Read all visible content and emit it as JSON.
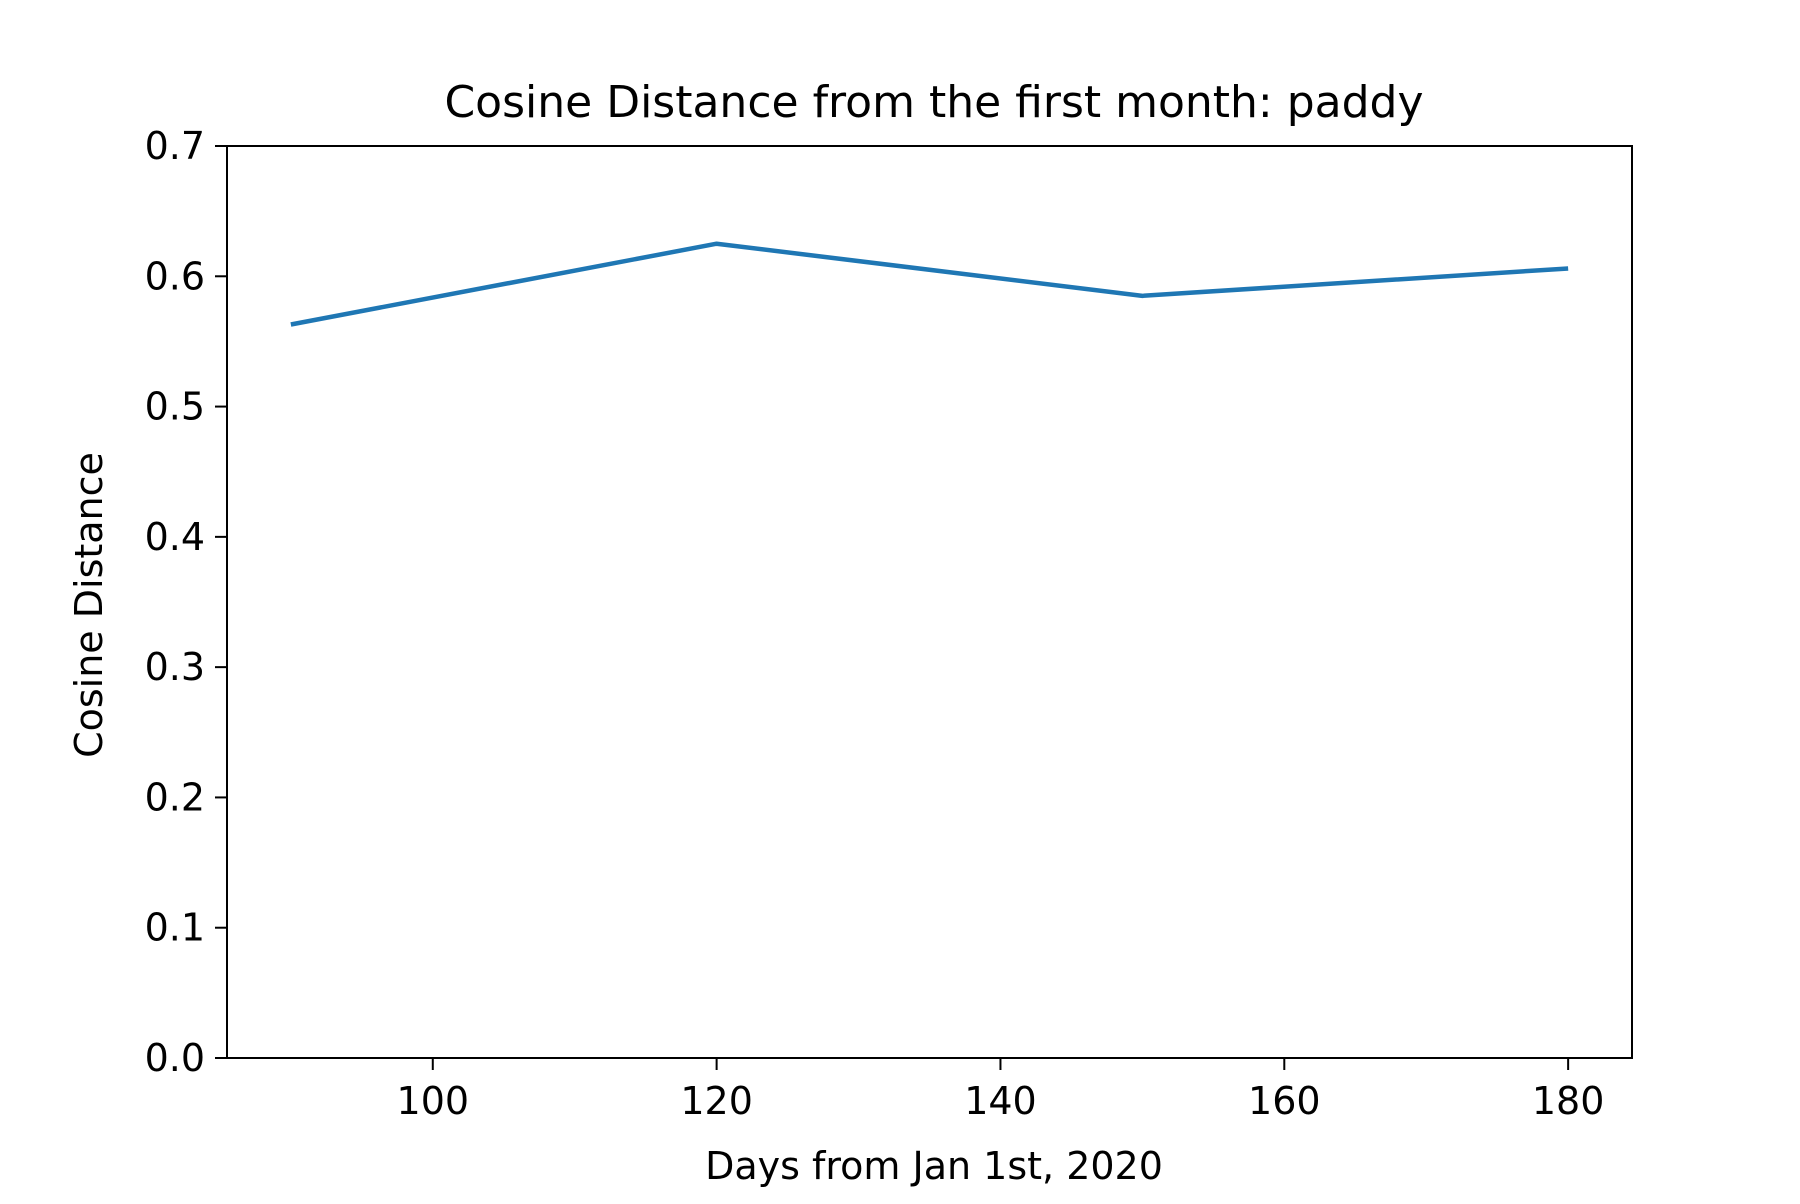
{
  "chart_data": {
    "type": "line",
    "title": "Cosine Distance from the first month: paddy",
    "xlabel": "Days from Jan 1st, 2020",
    "ylabel": "Cosine Distance",
    "xlim": [
      85.5,
      184.5
    ],
    "ylim": [
      0.0,
      0.7
    ],
    "x_ticks": [
      100,
      120,
      140,
      160,
      180
    ],
    "x_tick_labels": [
      "100",
      "120",
      "140",
      "160",
      "180"
    ],
    "y_ticks": [
      0.0,
      0.1,
      0.2,
      0.3,
      0.4,
      0.5,
      0.6,
      0.7
    ],
    "y_tick_labels": [
      "0.0",
      "0.1",
      "0.2",
      "0.3",
      "0.4",
      "0.5",
      "0.6",
      "0.7"
    ],
    "grid": false,
    "series": [
      {
        "x": [
          90,
          120,
          150,
          180
        ],
        "values": [
          0.563,
          0.625,
          0.585,
          0.606
        ],
        "color": "#1f77b4"
      }
    ]
  }
}
